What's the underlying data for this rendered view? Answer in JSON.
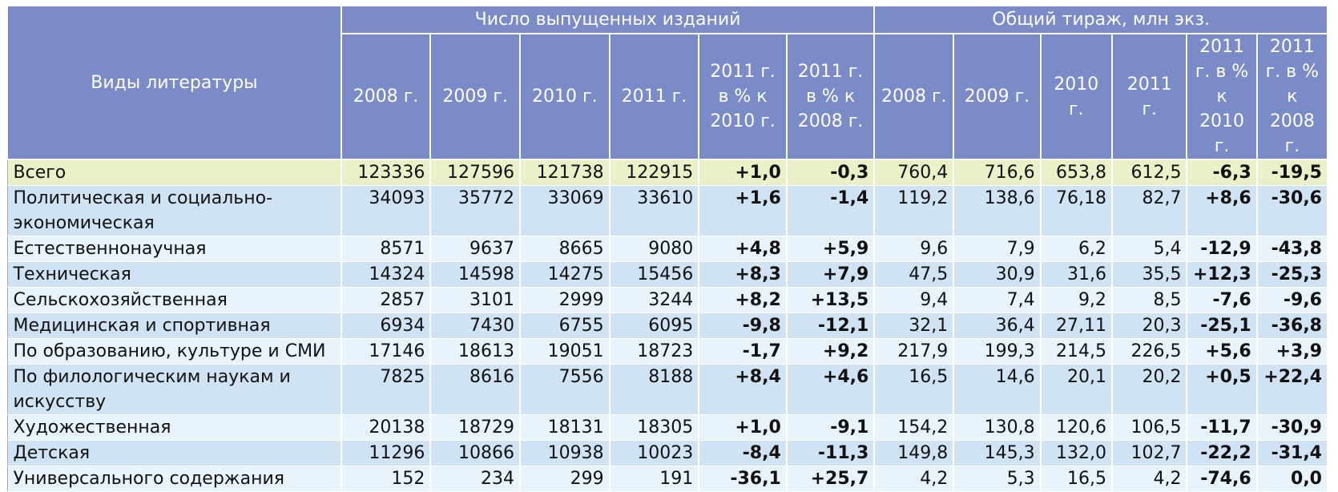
{
  "header": {
    "lit_label": "Виды литературы",
    "group_editions": "Число выпущенных изданий",
    "group_circulation": "Общий тираж, млн экз.",
    "cols": [
      "2008 г.",
      "2009 г.",
      "2010 г.",
      "2011 г.",
      "2011 г. в % к 2010 г.",
      "2011 г. в % к 2008 г."
    ]
  },
  "rows": [
    {
      "name": "Всего",
      "e": [
        "123336",
        "127596",
        "121738",
        "122915",
        "+1,0",
        "-0,3"
      ],
      "c": [
        "760,4",
        "716,6",
        "653,8",
        "612,5",
        "-6,3",
        "-19,5"
      ]
    },
    {
      "name": "Политическая и социально-экономическая",
      "e": [
        "34093",
        "35772",
        "33069",
        "33610",
        "+1,6",
        "-1,4"
      ],
      "c": [
        "119,2",
        "138,6",
        "76,18",
        "82,7",
        "+8,6",
        "-30,6"
      ]
    },
    {
      "name": "Естественнонаучная",
      "e": [
        "8571",
        "9637",
        "8665",
        "9080",
        "+4,8",
        "+5,9"
      ],
      "c": [
        "9,6",
        "7,9",
        "6,2",
        "5,4",
        "-12,9",
        "-43,8"
      ]
    },
    {
      "name": "Техническая",
      "e": [
        "14324",
        "14598",
        "14275",
        "15456",
        "+8,3",
        "+7,9"
      ],
      "c": [
        "47,5",
        "30,9",
        "31,6",
        "35,5",
        "+12,3",
        "-25,3"
      ]
    },
    {
      "name": "Сельскохозяйственная",
      "e": [
        "2857",
        "3101",
        "2999",
        "3244",
        "+8,2",
        "+13,5"
      ],
      "c": [
        "9,4",
        "7,4",
        "9,2",
        "8,5",
        "-7,6",
        "-9,6"
      ]
    },
    {
      "name": "Медицинская и спортивная",
      "e": [
        "6934",
        "7430",
        "6755",
        "6095",
        "-9,8",
        "-12,1"
      ],
      "c": [
        "32,1",
        "36,4",
        "27,11",
        "20,3",
        "-25,1",
        "-36,8"
      ]
    },
    {
      "name": "По образованию, культуре и СМИ",
      "e": [
        "17146",
        "18613",
        "19051",
        "18723",
        "-1,7",
        "+9,2"
      ],
      "c": [
        "217,9",
        "199,3",
        "214,5",
        "226,5",
        "+5,6",
        "+3,9"
      ]
    },
    {
      "name": "По филологическим наукам и искусству",
      "e": [
        "7825",
        "8616",
        "7556",
        "8188",
        "+8,4",
        "+4,6"
      ],
      "c": [
        "16,5",
        "14,6",
        "20,1",
        "20,2",
        "+0,5",
        "+22,4"
      ]
    },
    {
      "name": "Художественная",
      "e": [
        "20138",
        "18729",
        "18131",
        "18305",
        "+1,0",
        "-9,1"
      ],
      "c": [
        "154,2",
        "130,8",
        "120,6",
        "106,5",
        "-11,7",
        "-30,9"
      ]
    },
    {
      "name": "Детская",
      "e": [
        "11296",
        "10866",
        "10938",
        "10023",
        "-8,4",
        "-11,3"
      ],
      "c": [
        "149,8",
        "145,3",
        "132,0",
        "102,7",
        "-22,2",
        "-31,4"
      ]
    },
    {
      "name": "Универсального содержания",
      "e": [
        "152",
        "234",
        "299",
        "191",
        "-36,1",
        "+25,7"
      ],
      "c": [
        "4,2",
        "5,3",
        "16,5",
        "4,2",
        "-74,6",
        "0,0"
      ]
    }
  ]
}
